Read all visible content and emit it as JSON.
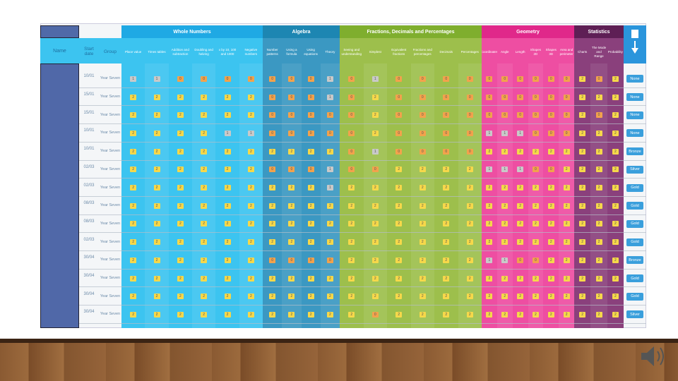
{
  "header": {
    "name": "Name",
    "start_date": "Start date",
    "group": "Group"
  },
  "sections": [
    {
      "title": "Whole Numbers",
      "color": "#3cc4f0",
      "header_color": "#1fa9e4",
      "topics": [
        "Place value",
        "Times tables",
        "Addition and subtraction",
        "Doubling and halving",
        "x by 10, 100 and 1000",
        "Negative numbers"
      ]
    },
    {
      "title": "Algebra",
      "color": "#3b98c2",
      "header_color": "#1d86b2",
      "topics": [
        "Number patterns",
        "Using a formula",
        "Using equations",
        "Theory"
      ]
    },
    {
      "title": "Fractions, Decimals and Percentages",
      "color": "#9dbf4c",
      "header_color": "#7fae2e",
      "topics": [
        "Seeing and understanding",
        "Simplest",
        "Equivalent fractions",
        "Fractions and percentages",
        "Decimals",
        "Percentages"
      ]
    },
    {
      "title": "Geometry",
      "color": "#ee4ea2",
      "header_color": "#e0288a",
      "topics": [
        "Coordinates",
        "Angle",
        "Length",
        "Shapes 2D",
        "Shapes 3D",
        "Area and perimeter"
      ]
    },
    {
      "title": "Statistics",
      "color": "#8a407c",
      "header_color": "#5e1f55",
      "topics": [
        "Charts",
        "The Mode and Range",
        "Probability"
      ]
    }
  ],
  "score_colors": {
    "0": "#f2a24c",
    "1": "#c9c9c9",
    "2": "#f6d84a"
  },
  "award_color": "#3a9fdc",
  "rows": [
    {
      "date": "10/01",
      "group": "Year Seven",
      "scores": [
        1,
        1,
        0,
        0,
        0,
        0,
        0,
        0,
        0,
        1,
        0,
        1,
        0,
        0,
        0,
        0,
        0,
        0,
        0,
        0,
        0,
        0,
        2,
        0,
        2
      ],
      "award": "None"
    },
    {
      "date": "15/01",
      "group": "Year Seven",
      "scores": [
        2,
        2,
        2,
        2,
        2,
        2,
        0,
        0,
        0,
        1,
        0,
        2,
        0,
        0,
        0,
        0,
        0,
        0,
        0,
        0,
        0,
        0,
        2,
        2,
        2
      ],
      "award": "None"
    },
    {
      "date": "15/01",
      "group": "Year Seven",
      "scores": [
        2,
        2,
        2,
        2,
        2,
        2,
        0,
        0,
        0,
        0,
        0,
        2,
        0,
        0,
        0,
        0,
        0,
        0,
        0,
        0,
        0,
        0,
        2,
        0,
        2
      ],
      "award": "None"
    },
    {
      "date": "10/01",
      "group": "Year Seven",
      "scores": [
        2,
        2,
        2,
        2,
        1,
        1,
        0,
        0,
        0,
        0,
        0,
        2,
        0,
        0,
        0,
        0,
        1,
        1,
        1,
        0,
        0,
        0,
        2,
        2,
        2
      ],
      "award": "None"
    },
    {
      "date": "10/01",
      "group": "Year Seven",
      "scores": [
        2,
        2,
        2,
        2,
        2,
        2,
        2,
        2,
        2,
        2,
        0,
        1,
        0,
        0,
        0,
        0,
        2,
        2,
        2,
        2,
        2,
        2,
        2,
        2,
        2
      ],
      "award": "Bronze"
    },
    {
      "date": "02/03",
      "group": "Year Seven",
      "scores": [
        2,
        2,
        2,
        2,
        2,
        2,
        0,
        0,
        0,
        1,
        0,
        0,
        2,
        2,
        2,
        2,
        1,
        1,
        1,
        0,
        0,
        2,
        2,
        2,
        2
      ],
      "award": "Silver"
    },
    {
      "date": "02/03",
      "group": "Year Seven",
      "scores": [
        2,
        2,
        2,
        2,
        2,
        2,
        2,
        2,
        2,
        1,
        2,
        2,
        2,
        2,
        2,
        2,
        2,
        2,
        2,
        2,
        2,
        2,
        2,
        2,
        2
      ],
      "award": "Gold"
    },
    {
      "date": "08/03",
      "group": "Year Seven",
      "scores": [
        2,
        2,
        2,
        2,
        2,
        2,
        2,
        2,
        2,
        2,
        2,
        2,
        2,
        2,
        2,
        2,
        2,
        2,
        2,
        2,
        2,
        2,
        2,
        2,
        2
      ],
      "award": "Gold"
    },
    {
      "date": "08/03",
      "group": "Year Seven",
      "scores": [
        2,
        2,
        2,
        2,
        2,
        2,
        2,
        2,
        2,
        2,
        2,
        2,
        2,
        2,
        2,
        2,
        2,
        2,
        2,
        2,
        2,
        2,
        2,
        2,
        2
      ],
      "award": "Gold"
    },
    {
      "date": "02/03",
      "group": "Year Seven",
      "scores": [
        2,
        2,
        2,
        2,
        2,
        2,
        2,
        2,
        2,
        2,
        2,
        2,
        2,
        2,
        2,
        2,
        2,
        2,
        2,
        2,
        2,
        2,
        2,
        2,
        2
      ],
      "award": "Gold"
    },
    {
      "date": "30/04",
      "group": "Year Seven",
      "scores": [
        2,
        2,
        2,
        2,
        2,
        2,
        0,
        0,
        0,
        0,
        2,
        2,
        2,
        2,
        2,
        2,
        1,
        1,
        0,
        0,
        2,
        2,
        2,
        2,
        2
      ],
      "award": "Bronze"
    },
    {
      "date": "30/04",
      "group": "Year Seven",
      "scores": [
        2,
        2,
        2,
        2,
        2,
        2,
        2,
        2,
        2,
        2,
        2,
        2,
        2,
        2,
        2,
        2,
        2,
        2,
        2,
        2,
        2,
        2,
        2,
        2,
        2
      ],
      "award": "Gold"
    },
    {
      "date": "30/04",
      "group": "Year Seven",
      "scores": [
        2,
        2,
        2,
        2,
        2,
        2,
        2,
        2,
        2,
        2,
        2,
        2,
        2,
        2,
        2,
        2,
        2,
        2,
        2,
        2,
        2,
        2,
        2,
        2,
        2
      ],
      "award": "Gold"
    },
    {
      "date": "30/04",
      "group": "Year Seven",
      "scores": [
        2,
        2,
        2,
        2,
        2,
        2,
        2,
        2,
        2,
        2,
        2,
        0,
        2,
        2,
        2,
        2,
        2,
        2,
        2,
        2,
        2,
        2,
        2,
        2,
        2
      ],
      "award": "Silver"
    }
  ]
}
